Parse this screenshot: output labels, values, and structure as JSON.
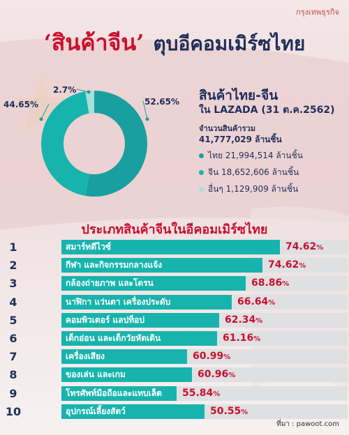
{
  "brand": "กรุงเทพธุรกิจ",
  "title": {
    "highlight": "‘สินค้าจีน’",
    "rest": "ตุบอีคอมเมิร์ซไทย"
  },
  "info": {
    "title": "สินค้าไทย-จีน",
    "subtitle": "ใน LAZADA (31 ต.ค.2562)",
    "total_label": "จำนวนสินค้ารวม",
    "total_value": "41,777,029 ล้านชิ้น",
    "legend": [
      {
        "text": "ไทย 21,994,514 ล้านชิ้น",
        "color": "#1a9fa0"
      },
      {
        "text": "จีน 18,652,606 ล้านชิ้น",
        "color": "#17b4ad"
      },
      {
        "text": "อื่นๆ 1,129,909 ล้านชิ้น",
        "color": "#a6dfdb"
      }
    ]
  },
  "section_title": "ประเภทสินค้าจีนในอีคอมเมิร์ซไทย",
  "source": "ที่มา : pawoot.com",
  "chart_data": [
    {
      "type": "pie",
      "donut": true,
      "categories": [
        "ไทย",
        "จีน",
        "อื่นๆ"
      ],
      "values": [
        52.65,
        44.65,
        2.7
      ],
      "labels": [
        "52.65%",
        "44.65%",
        "2.7%"
      ],
      "colors": [
        "#1a9fa0",
        "#17b4ad",
        "#a6dfdb"
      ]
    },
    {
      "type": "bar",
      "orientation": "horizontal",
      "title": "ประเภทสินค้าจีนในอีคอมเมิร์ซไทย",
      "ranks": [
        "1",
        "2",
        "3",
        "4",
        "5",
        "6",
        "7",
        "8",
        "9",
        "10"
      ],
      "categories": [
        "สมาร์ทดีไวซ์",
        "กีฬา และกิจกรรมกลางแจ้ง",
        "กล้องถ่ายภาพ และโดรน",
        "นาฬิกา แว่นตา เครื่องประดับ",
        "คอมพิวเตอร์ แลปท็อป",
        "เด็กอ่อน และเด็กวัยหัดเดิน",
        "เครื่องเสียง",
        "ของเล่น และเกม",
        "โทรศัพท์มือถือและแทบเล็ต",
        "อุปกรณ์เลี้ยงสัตว์"
      ],
      "values": [
        74.62,
        74.62,
        68.86,
        66.64,
        62.34,
        61.16,
        60.99,
        60.96,
        55.84,
        50.55
      ],
      "labels": [
        "74.62",
        "74.62",
        "68.86",
        "66.64",
        "62.34",
        "61.16",
        "60.99",
        "60.96",
        "55.84",
        "50.55"
      ],
      "bar_lengths": [
        0.763,
        0.703,
        0.644,
        0.595,
        0.55,
        0.545,
        0.44,
        0.455,
        0.403,
        0.5
      ],
      "unit": "%",
      "xlim": [
        0,
        100
      ]
    }
  ]
}
